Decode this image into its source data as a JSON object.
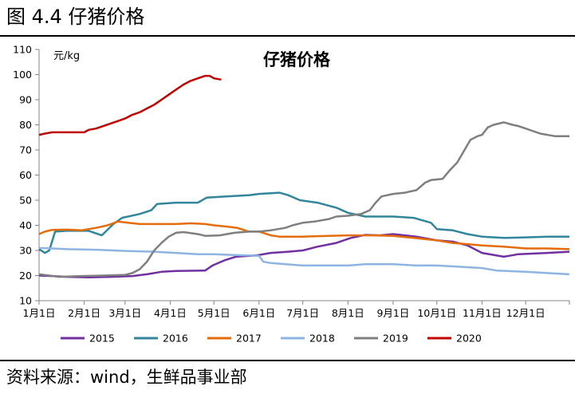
{
  "header": {
    "figure_title": "图 4.4  仔猪价格"
  },
  "footer": {
    "source": "资料来源：wind，生鲜品事业部"
  },
  "chart_data": {
    "type": "line",
    "title": "仔猪价格",
    "ylabel": "元/kg",
    "xlabel": "",
    "ylim": [
      10,
      110
    ],
    "yticks": [
      10,
      20,
      30,
      40,
      50,
      60,
      70,
      80,
      90,
      100,
      110
    ],
    "xlim": [
      1,
      365
    ],
    "xticks": [
      {
        "label": "1月1日",
        "day": 1
      },
      {
        "label": "2月1日",
        "day": 32
      },
      {
        "label": "3月1日",
        "day": 60
      },
      {
        "label": "4月1日",
        "day": 91
      },
      {
        "label": "5月1日",
        "day": 121
      },
      {
        "label": "6月1日",
        "day": 152
      },
      {
        "label": "7月1日",
        "day": 182
      },
      {
        "label": "8月1日",
        "day": 213
      },
      {
        "label": "9月1日",
        "day": 244
      },
      {
        "label": "10月1日",
        "day": 274
      },
      {
        "label": "11月1日",
        "day": 305
      },
      {
        "label": "12月1日",
        "day": 335
      }
    ],
    "grid": false,
    "legend_position": "bottom",
    "series": [
      {
        "name": "2015",
        "color": "#7030a0",
        "points": [
          [
            1,
            20
          ],
          [
            10,
            19.8
          ],
          [
            20,
            19.5
          ],
          [
            35,
            19.3
          ],
          [
            50,
            19.5
          ],
          [
            65,
            19.8
          ],
          [
            75,
            20.5
          ],
          [
            85,
            21.5
          ],
          [
            95,
            21.8
          ],
          [
            115,
            22
          ],
          [
            120,
            24
          ],
          [
            128,
            26
          ],
          [
            136,
            27.5
          ],
          [
            150,
            28
          ],
          [
            160,
            29
          ],
          [
            172,
            29.5
          ],
          [
            182,
            30
          ],
          [
            192,
            31.5
          ],
          [
            205,
            33
          ],
          [
            215,
            35
          ],
          [
            225,
            36.2
          ],
          [
            235,
            36
          ],
          [
            244,
            36.5
          ],
          [
            260,
            35.5
          ],
          [
            274,
            34
          ],
          [
            285,
            33.5
          ],
          [
            295,
            32
          ],
          [
            305,
            29
          ],
          [
            320,
            27.5
          ],
          [
            330,
            28.5
          ],
          [
            350,
            29
          ],
          [
            365,
            29.5
          ]
        ]
      },
      {
        "name": "2016",
        "color": "#31869b",
        "points": [
          [
            1,
            30.5
          ],
          [
            5,
            29
          ],
          [
            8,
            30
          ],
          [
            12,
            37.5
          ],
          [
            20,
            37.8
          ],
          [
            35,
            37.8
          ],
          [
            44,
            36
          ],
          [
            52,
            40.5
          ],
          [
            58,
            43
          ],
          [
            70,
            44.5
          ],
          [
            78,
            46
          ],
          [
            82,
            48.5
          ],
          [
            95,
            49
          ],
          [
            110,
            49
          ],
          [
            116,
            51
          ],
          [
            130,
            51.5
          ],
          [
            145,
            52
          ],
          [
            152,
            52.5
          ],
          [
            166,
            53
          ],
          [
            172,
            52
          ],
          [
            180,
            50
          ],
          [
            192,
            49
          ],
          [
            205,
            47
          ],
          [
            213,
            45
          ],
          [
            225,
            43.5
          ],
          [
            235,
            43.5
          ],
          [
            244,
            43.5
          ],
          [
            258,
            43
          ],
          [
            270,
            41
          ],
          [
            274,
            38.5
          ],
          [
            285,
            38
          ],
          [
            295,
            36.5
          ],
          [
            305,
            35.5
          ],
          [
            320,
            35
          ],
          [
            335,
            35.2
          ],
          [
            350,
            35.5
          ],
          [
            365,
            35.5
          ]
        ]
      },
      {
        "name": "2017",
        "color": "#e46c0a",
        "points": [
          [
            1,
            36.5
          ],
          [
            5,
            37.5
          ],
          [
            10,
            38.2
          ],
          [
            20,
            38.3
          ],
          [
            30,
            38
          ],
          [
            40,
            39
          ],
          [
            48,
            40
          ],
          [
            55,
            41.5
          ],
          [
            62,
            41
          ],
          [
            70,
            40.5
          ],
          [
            80,
            40.5
          ],
          [
            95,
            40.5
          ],
          [
            105,
            40.8
          ],
          [
            115,
            40.5
          ],
          [
            121,
            40
          ],
          [
            130,
            39.5
          ],
          [
            137,
            39
          ],
          [
            145,
            37.5
          ],
          [
            152,
            37.5
          ],
          [
            160,
            36
          ],
          [
            166,
            35.5
          ],
          [
            182,
            35.5
          ],
          [
            200,
            35.8
          ],
          [
            213,
            36
          ],
          [
            230,
            36
          ],
          [
            244,
            35.8
          ],
          [
            258,
            35
          ],
          [
            274,
            34
          ],
          [
            285,
            33
          ],
          [
            295,
            32.5
          ],
          [
            305,
            32
          ],
          [
            320,
            31.5
          ],
          [
            335,
            30.8
          ],
          [
            350,
            30.8
          ],
          [
            365,
            30.5
          ]
        ]
      },
      {
        "name": "2018",
        "color": "#8db4e2",
        "points": [
          [
            1,
            31
          ],
          [
            10,
            30.8
          ],
          [
            20,
            30.5
          ],
          [
            40,
            30.3
          ],
          [
            60,
            29.8
          ],
          [
            80,
            29.5
          ],
          [
            95,
            29
          ],
          [
            110,
            28.5
          ],
          [
            121,
            28.5
          ],
          [
            135,
            28.2
          ],
          [
            145,
            28
          ],
          [
            152,
            27.8
          ],
          [
            155,
            25.5
          ],
          [
            160,
            25
          ],
          [
            170,
            24.5
          ],
          [
            182,
            24
          ],
          [
            200,
            24
          ],
          [
            213,
            24
          ],
          [
            225,
            24.5
          ],
          [
            244,
            24.5
          ],
          [
            260,
            24
          ],
          [
            274,
            24
          ],
          [
            290,
            23.5
          ],
          [
            305,
            23
          ],
          [
            315,
            22
          ],
          [
            335,
            21.5
          ],
          [
            350,
            21
          ],
          [
            365,
            20.5
          ]
        ]
      },
      {
        "name": "2019",
        "color": "#7f7f7f",
        "points": [
          [
            1,
            20.5
          ],
          [
            15,
            19.5
          ],
          [
            30,
            19.8
          ],
          [
            45,
            20
          ],
          [
            60,
            20.3
          ],
          [
            65,
            21
          ],
          [
            70,
            22.5
          ],
          [
            75,
            25.5
          ],
          [
            80,
            30
          ],
          [
            85,
            33
          ],
          [
            90,
            35.5
          ],
          [
            95,
            37
          ],
          [
            100,
            37.3
          ],
          [
            110,
            36.5
          ],
          [
            115,
            35.8
          ],
          [
            125,
            36
          ],
          [
            135,
            37
          ],
          [
            145,
            37.5
          ],
          [
            152,
            37.5
          ],
          [
            160,
            38
          ],
          [
            170,
            39
          ],
          [
            175,
            40
          ],
          [
            182,
            41
          ],
          [
            190,
            41.5
          ],
          [
            200,
            42.5
          ],
          [
            205,
            43.5
          ],
          [
            213,
            43.8
          ],
          [
            222,
            44.5
          ],
          [
            228,
            46
          ],
          [
            232,
            49
          ],
          [
            236,
            51.5
          ],
          [
            244,
            52.5
          ],
          [
            252,
            53
          ],
          [
            260,
            54
          ],
          [
            266,
            57
          ],
          [
            270,
            58
          ],
          [
            278,
            58.5
          ],
          [
            283,
            62
          ],
          [
            288,
            65
          ],
          [
            293,
            70
          ],
          [
            297,
            74
          ],
          [
            302,
            75.5
          ],
          [
            305,
            76
          ],
          [
            309,
            79
          ],
          [
            313,
            80
          ],
          [
            320,
            81
          ],
          [
            326,
            80
          ],
          [
            330,
            79.5
          ],
          [
            335,
            78.5
          ],
          [
            345,
            76.5
          ],
          [
            355,
            75.5
          ],
          [
            365,
            75.5
          ]
        ]
      },
      {
        "name": "2020",
        "color": "#c00000",
        "points": [
          [
            1,
            76
          ],
          [
            5,
            76.5
          ],
          [
            10,
            77
          ],
          [
            20,
            77
          ],
          [
            32,
            77
          ],
          [
            35,
            78
          ],
          [
            40,
            78.5
          ],
          [
            45,
            79.5
          ],
          [
            50,
            80.5
          ],
          [
            55,
            81.5
          ],
          [
            60,
            82.5
          ],
          [
            65,
            84
          ],
          [
            70,
            85
          ],
          [
            75,
            86.5
          ],
          [
            80,
            88
          ],
          [
            85,
            90
          ],
          [
            90,
            92
          ],
          [
            95,
            94
          ],
          [
            100,
            96
          ],
          [
            105,
            97.5
          ],
          [
            110,
            98.5
          ],
          [
            115,
            99.5
          ],
          [
            118,
            99.5
          ],
          [
            121,
            98.5
          ],
          [
            126,
            98
          ]
        ]
      }
    ]
  }
}
